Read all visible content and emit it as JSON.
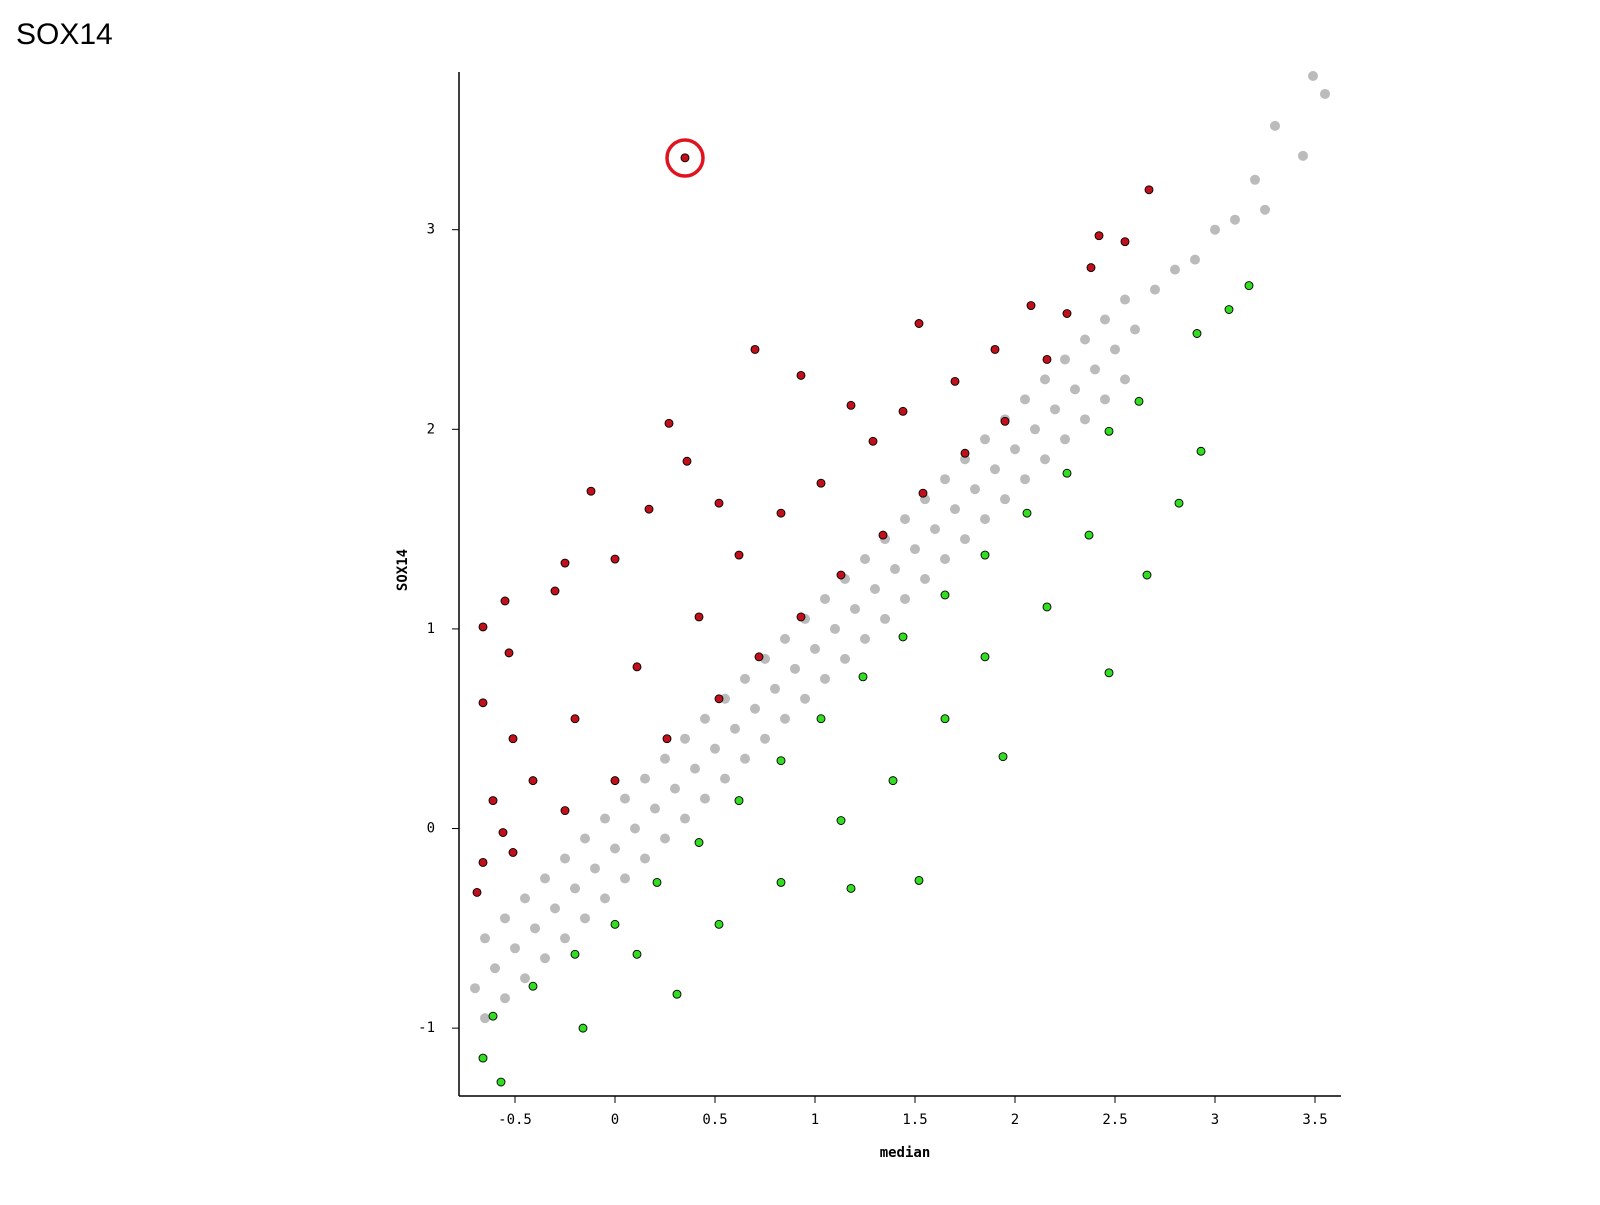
{
  "title": "SOX14",
  "chart_data": {
    "type": "scatter",
    "xlabel": "median",
    "ylabel": "SOX14",
    "xlim": [
      -0.78,
      3.63
    ],
    "ylim": [
      -1.34,
      3.79
    ],
    "xticks": [
      -0.5,
      0,
      0.5,
      1,
      1.5,
      2,
      2.5,
      3,
      3.5
    ],
    "yticks": [
      -1,
      0,
      1,
      2,
      3
    ],
    "grid": false,
    "series": [
      {
        "color": "#bbbbbb",
        "x": [
          -0.65,
          -0.55,
          -0.45,
          -0.35,
          -0.25,
          -0.15,
          -0.05,
          0.05,
          0.15,
          0.25,
          0.35,
          0.45,
          0.55,
          0.65,
          0.75,
          0.85,
          0.95,
          1.05,
          1.15,
          1.25,
          1.35,
          1.45,
          1.55,
          1.65,
          1.75,
          1.85,
          1.95,
          2.05,
          2.15,
          2.25,
          2.35,
          2.45,
          2.55,
          -0.7,
          -0.6,
          -0.5,
          -0.4,
          -0.3,
          -0.2,
          -0.1,
          0,
          0.1,
          0.2,
          0.3,
          0.4,
          0.5,
          0.6,
          0.7,
          0.8,
          0.9,
          1,
          1.1,
          1.2,
          1.3,
          1.4,
          1.5,
          1.6,
          1.7,
          1.8,
          1.9,
          2,
          2.1,
          2.2,
          2.3,
          2.4,
          2.5,
          2.6,
          -0.65,
          -0.55,
          -0.45,
          -0.35,
          -0.25,
          -0.15,
          -0.05,
          0.05,
          0.15,
          0.25,
          0.35,
          0.45,
          0.55,
          0.65,
          0.75,
          0.85,
          0.95,
          1.05,
          1.15,
          1.25,
          1.35,
          1.45,
          1.55,
          1.65,
          1.75,
          1.85,
          1.95,
          2.05,
          2.15,
          2.25,
          2.35,
          2.45,
          2.55,
          2.7,
          2.8,
          2.9,
          3.0,
          3.1,
          3.2,
          3.25,
          3.3,
          3.44,
          3.49,
          3.55
        ],
        "y": [
          -0.55,
          -0.45,
          -0.35,
          -0.25,
          -0.15,
          -0.05,
          0.05,
          0.15,
          0.25,
          0.35,
          0.45,
          0.55,
          0.65,
          0.75,
          0.85,
          0.95,
          1.05,
          1.15,
          1.25,
          1.35,
          1.45,
          1.55,
          1.65,
          1.75,
          1.85,
          1.95,
          2.05,
          2.15,
          2.25,
          2.35,
          2.45,
          2.55,
          2.65,
          -0.8,
          -0.7,
          -0.6,
          -0.5,
          -0.4,
          -0.3,
          -0.2,
          -0.1,
          0,
          0.1,
          0.2,
          0.3,
          0.4,
          0.5,
          0.6,
          0.7,
          0.8,
          0.9,
          1,
          1.1,
          1.2,
          1.3,
          1.4,
          1.5,
          1.6,
          1.7,
          1.8,
          1.9,
          2,
          2.1,
          2.2,
          2.3,
          2.4,
          2.5,
          -0.95,
          -0.85,
          -0.75,
          -0.65,
          -0.55,
          -0.45,
          -0.35,
          -0.25,
          -0.15,
          -0.05,
          0.05,
          0.15,
          0.25,
          0.35,
          0.45,
          0.55,
          0.65,
          0.75,
          0.85,
          0.95,
          1.05,
          1.15,
          1.25,
          1.35,
          1.45,
          1.55,
          1.65,
          1.75,
          1.85,
          1.95,
          2.05,
          2.15,
          2.25,
          2.7,
          2.8,
          2.85,
          3.0,
          3.05,
          3.25,
          3.1,
          3.52,
          3.37,
          3.77,
          3.68
        ]
      },
      {
        "color": "#c0101a",
        "edgecolor": "#000000",
        "x": [
          2.67,
          0.35,
          2.42,
          2.55,
          2.38,
          2.08,
          1.52,
          0.7,
          0.93,
          0.27,
          0.36,
          -0.12,
          0.17,
          -0.25,
          -0.55,
          -0.66,
          -0.53,
          -0.3,
          0.0,
          -0.66,
          -0.51,
          -0.61,
          -0.66,
          -0.56,
          -0.41,
          -0.2,
          0.11,
          0.42,
          0.62,
          0.83,
          1.03,
          1.29,
          1.44,
          1.7,
          1.9,
          2.26,
          0.52,
          1.18,
          0.0,
          -0.25,
          0.26,
          0.52,
          0.72,
          0.93,
          1.13,
          1.34,
          1.54,
          1.75,
          1.95,
          2.16,
          -0.69,
          -0.51
        ],
        "y": [
          3.2,
          3.36,
          2.97,
          2.94,
          2.81,
          2.62,
          2.53,
          2.4,
          2.27,
          2.03,
          1.84,
          1.69,
          1.6,
          1.33,
          1.14,
          1.01,
          0.88,
          1.19,
          1.35,
          0.63,
          0.45,
          0.14,
          -0.17,
          -0.02,
          0.24,
          0.55,
          0.81,
          1.06,
          1.37,
          1.58,
          1.73,
          1.94,
          2.09,
          2.24,
          2.4,
          2.58,
          1.63,
          2.12,
          0.24,
          0.09,
          0.45,
          0.65,
          0.86,
          1.06,
          1.27,
          1.47,
          1.68,
          1.88,
          2.04,
          2.35,
          -0.32,
          -0.12
        ]
      },
      {
        "color": "#33dd22",
        "edgecolor": "#000000",
        "x": [
          3.17,
          3.07,
          2.91,
          2.93,
          2.82,
          2.66,
          2.47,
          1.94,
          1.52,
          1.18,
          0.31,
          -0.16,
          -0.57,
          -0.66,
          -0.61,
          -0.41,
          -0.2,
          0.0,
          0.21,
          0.42,
          0.62,
          0.83,
          1.03,
          1.24,
          1.44,
          1.65,
          1.85,
          2.06,
          2.26,
          2.47,
          2.62,
          0.52,
          0.83,
          1.13,
          1.39,
          1.65,
          1.85,
          2.16,
          2.37,
          0.11
        ],
        "y": [
          2.72,
          2.6,
          2.48,
          1.89,
          1.63,
          1.27,
          0.78,
          0.36,
          -0.26,
          -0.3,
          -0.83,
          -1.0,
          -1.27,
          -1.15,
          -0.94,
          -0.79,
          -0.63,
          -0.48,
          -0.27,
          -0.07,
          0.14,
          0.34,
          0.55,
          0.76,
          0.96,
          1.17,
          1.37,
          1.58,
          1.78,
          1.99,
          2.14,
          -0.48,
          -0.27,
          0.04,
          0.24,
          0.55,
          0.86,
          1.11,
          1.47,
          -0.63
        ]
      }
    ]
  }
}
